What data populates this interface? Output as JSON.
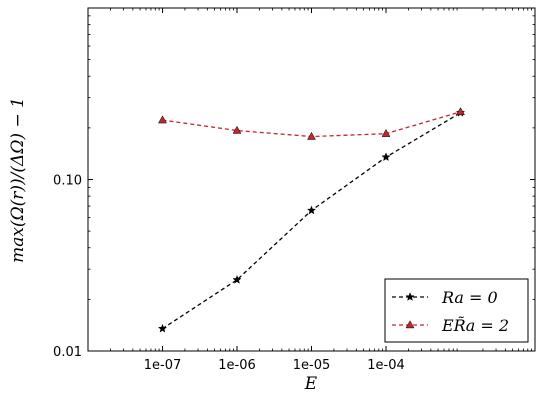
{
  "chart_data": {
    "type": "line",
    "xlabel": "E",
    "ylabel": "max(Ω(r))/(ΔΩ) − 1",
    "x_scale": "log",
    "y_scale": "log",
    "xlim": [
      1e-08,
      0.01
    ],
    "ylim": [
      0.01,
      1.0
    ],
    "x_ticks": [
      {
        "value": 1e-07,
        "label": "1e-07"
      },
      {
        "value": 1e-06,
        "label": "1e-06"
      },
      {
        "value": 1e-05,
        "label": "1e-05"
      },
      {
        "value": 0.0001,
        "label": "1e-04"
      }
    ],
    "y_ticks": [
      {
        "value": 0.01,
        "label": "0.01"
      },
      {
        "value": 0.1,
        "label": "0.10"
      }
    ],
    "grid": false,
    "legend_position": "bottom-right",
    "series": [
      {
        "name": "Ra = 0",
        "color": "#000000",
        "marker": "star",
        "line_style": "dashed",
        "x": [
          1e-07,
          1e-06,
          1e-05,
          0.0001,
          0.001
        ],
        "y": [
          0.0135,
          0.026,
          0.066,
          0.135,
          0.245
        ]
      },
      {
        "name": "ER̃a = 2",
        "color": "#c0282d",
        "marker": "triangle",
        "line_style": "dashed",
        "x": [
          1e-07,
          1e-06,
          1e-05,
          0.0001,
          0.001
        ],
        "y": [
          0.222,
          0.193,
          0.178,
          0.185,
          0.248
        ]
      }
    ]
  }
}
